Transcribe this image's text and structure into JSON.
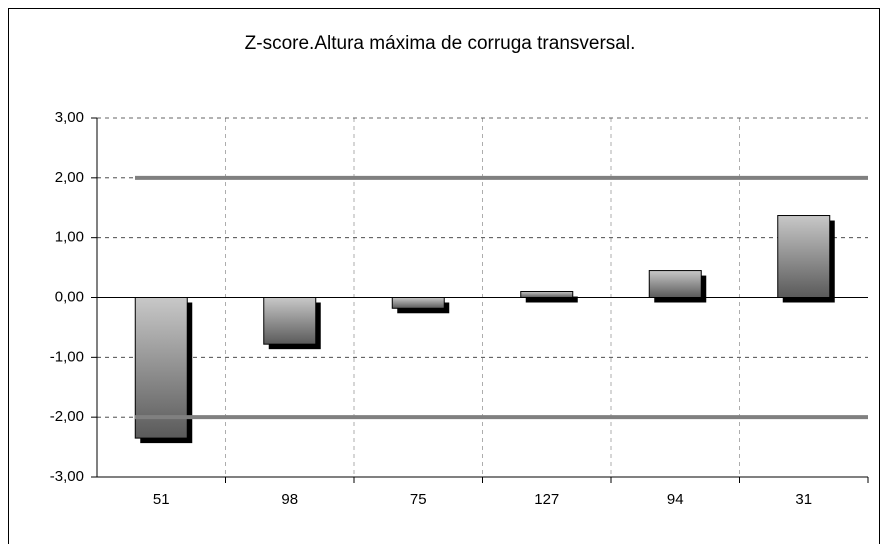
{
  "chart_data": {
    "type": "bar",
    "title": "Z-score.Altura máxima de corruga transversal.",
    "categories": [
      "51",
      "98",
      "75",
      "127",
      "94",
      "31"
    ],
    "values": [
      -2.35,
      -0.78,
      -0.18,
      0.1,
      0.45,
      1.37
    ],
    "color": "#909090",
    "reference_lines": [
      2,
      -2
    ],
    "reference_color": "#808080",
    "ylim": [
      -3,
      3
    ],
    "yticks": [
      {
        "value": -3,
        "label": "-3,00"
      },
      {
        "value": -2,
        "label": "-2,00"
      },
      {
        "value": -1,
        "label": "-1,00"
      },
      {
        "value": 0,
        "label": "0,00"
      },
      {
        "value": 1,
        "label": "1,00"
      },
      {
        "value": 2,
        "label": "2,00"
      },
      {
        "value": 3,
        "label": "3,00"
      }
    ],
    "grid": true
  }
}
